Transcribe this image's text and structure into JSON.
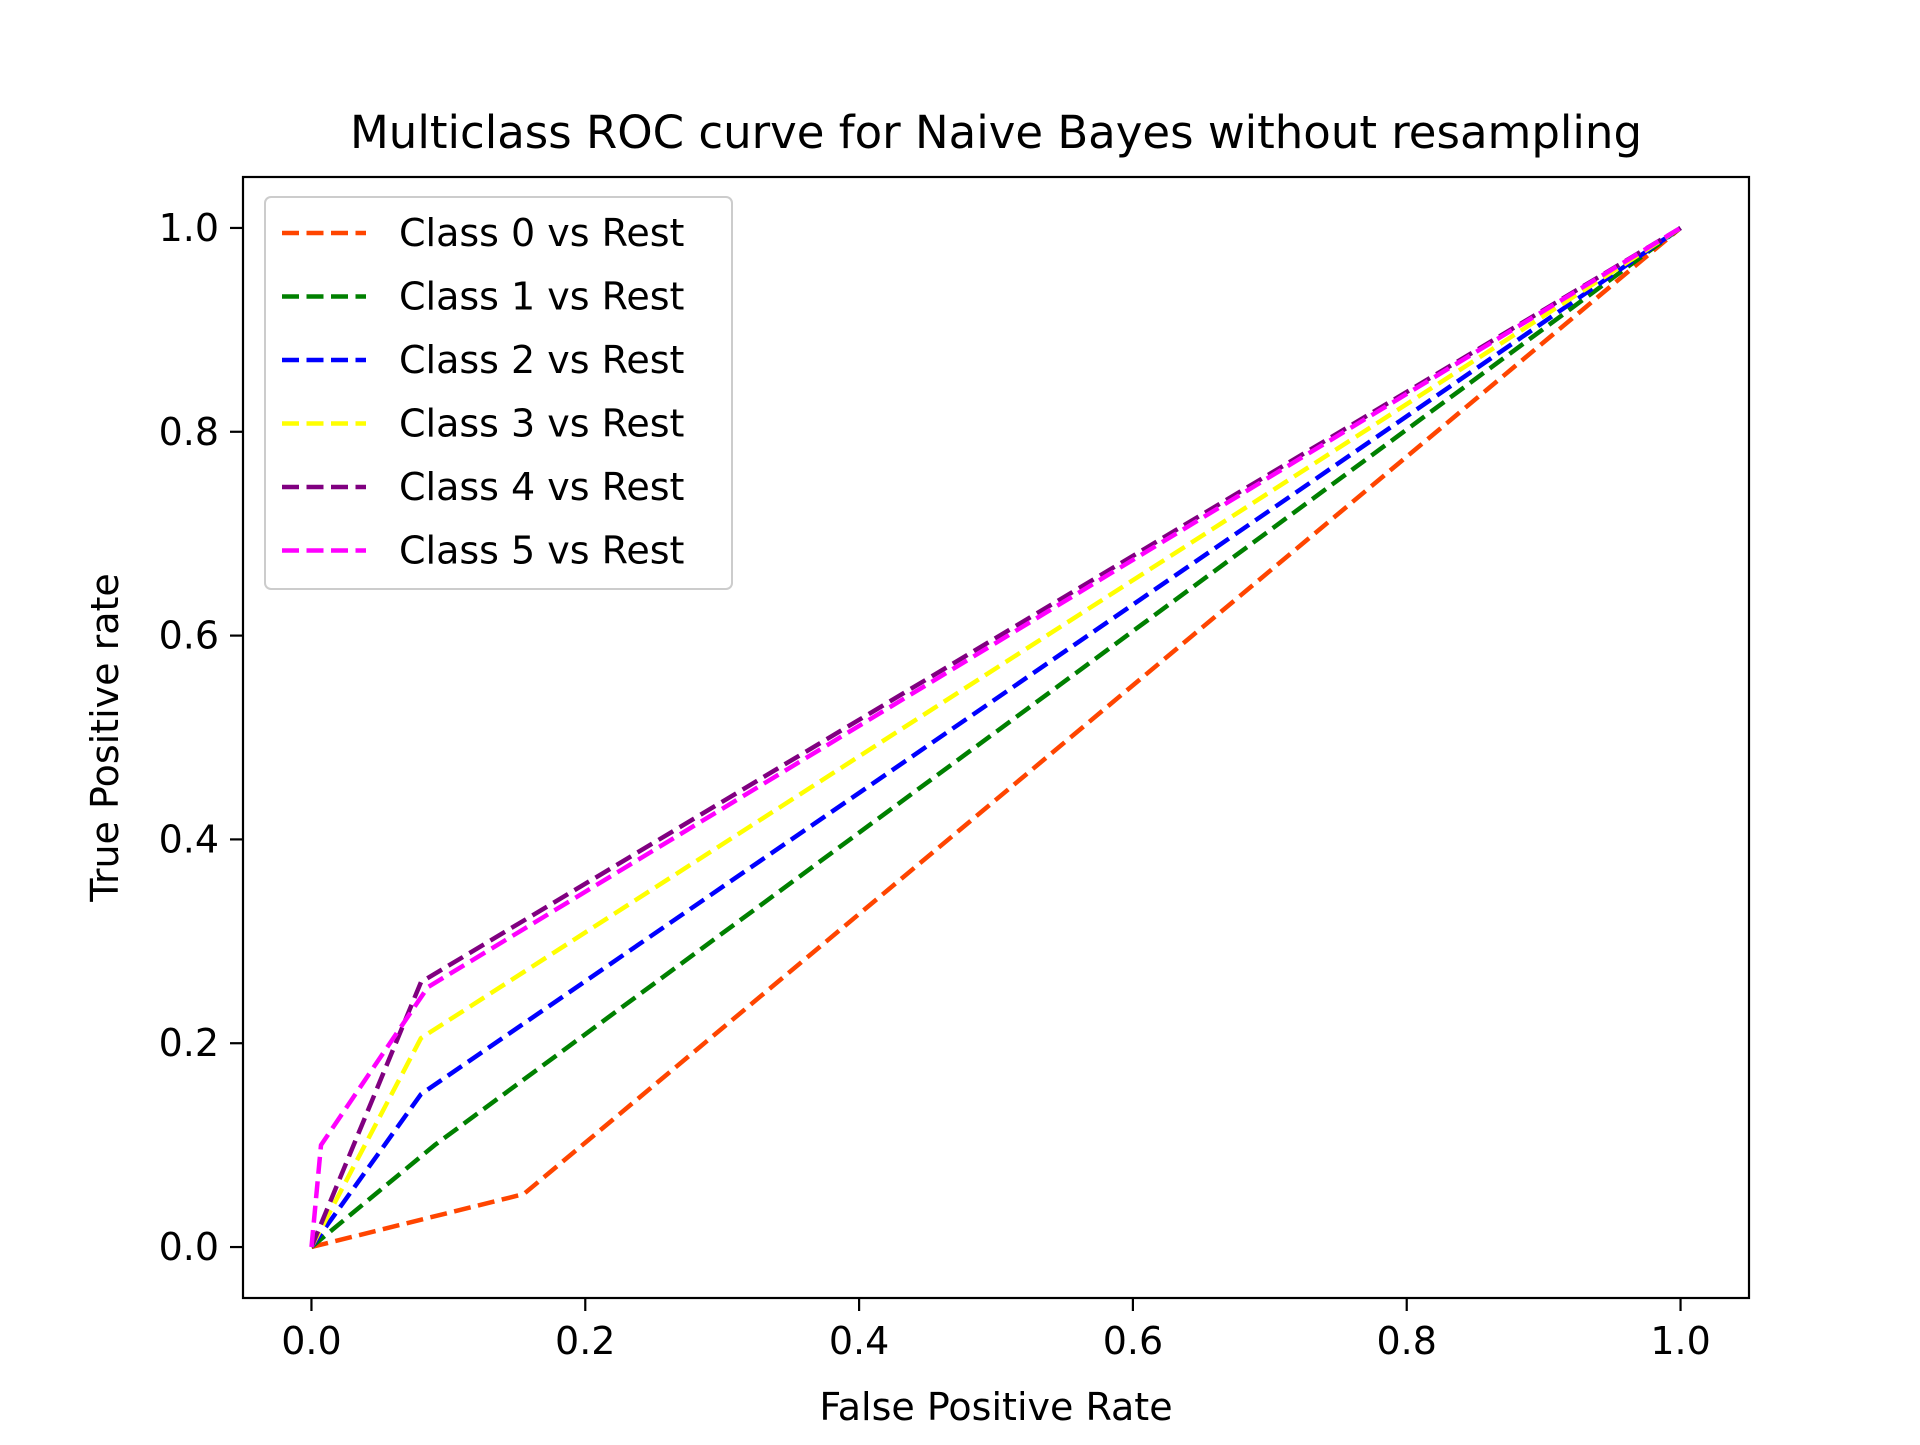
{
  "chart_data": {
    "type": "line",
    "title": "Multiclass ROC curve for Naive Bayes without resampling",
    "xlabel": "False Positive Rate",
    "ylabel": "True Positive rate",
    "xlim": [
      -0.05,
      1.05
    ],
    "ylim": [
      -0.05,
      1.05
    ],
    "xticks": [
      "0.0",
      "0.2",
      "0.4",
      "0.6",
      "0.8",
      "1.0"
    ],
    "yticks": [
      "0.0",
      "0.2",
      "0.4",
      "0.6",
      "0.8",
      "1.0"
    ],
    "grid": false,
    "legend_position": "upper-left",
    "line_style": "dashed",
    "series": [
      {
        "name": "Class 0 vs Rest",
        "color": "#ff4500",
        "x": [
          0.0,
          0.155,
          1.0
        ],
        "y": [
          0.0,
          0.052,
          1.0
        ]
      },
      {
        "name": "Class 1 vs Rest",
        "color": "#008000",
        "x": [
          0.0,
          0.09,
          1.0
        ],
        "y": [
          0.0,
          0.1,
          1.0
        ]
      },
      {
        "name": "Class 2 vs Rest",
        "color": "#0000ff",
        "x": [
          0.0,
          0.08,
          1.0
        ],
        "y": [
          0.0,
          0.15,
          1.0
        ]
      },
      {
        "name": "Class 3 vs Rest",
        "color": "#ffff00",
        "x": [
          0.0,
          0.08,
          1.0
        ],
        "y": [
          0.0,
          0.205,
          1.0
        ]
      },
      {
        "name": "Class 4 vs Rest",
        "color": "#800080",
        "x": [
          0.0,
          0.08,
          1.0
        ],
        "y": [
          0.0,
          0.26,
          1.0
        ]
      },
      {
        "name": "Class 5 vs Rest",
        "color": "#ff00ff",
        "x": [
          0.0,
          0.007,
          0.085,
          1.0
        ],
        "y": [
          0.0,
          0.1,
          0.255,
          1.0
        ]
      }
    ]
  }
}
